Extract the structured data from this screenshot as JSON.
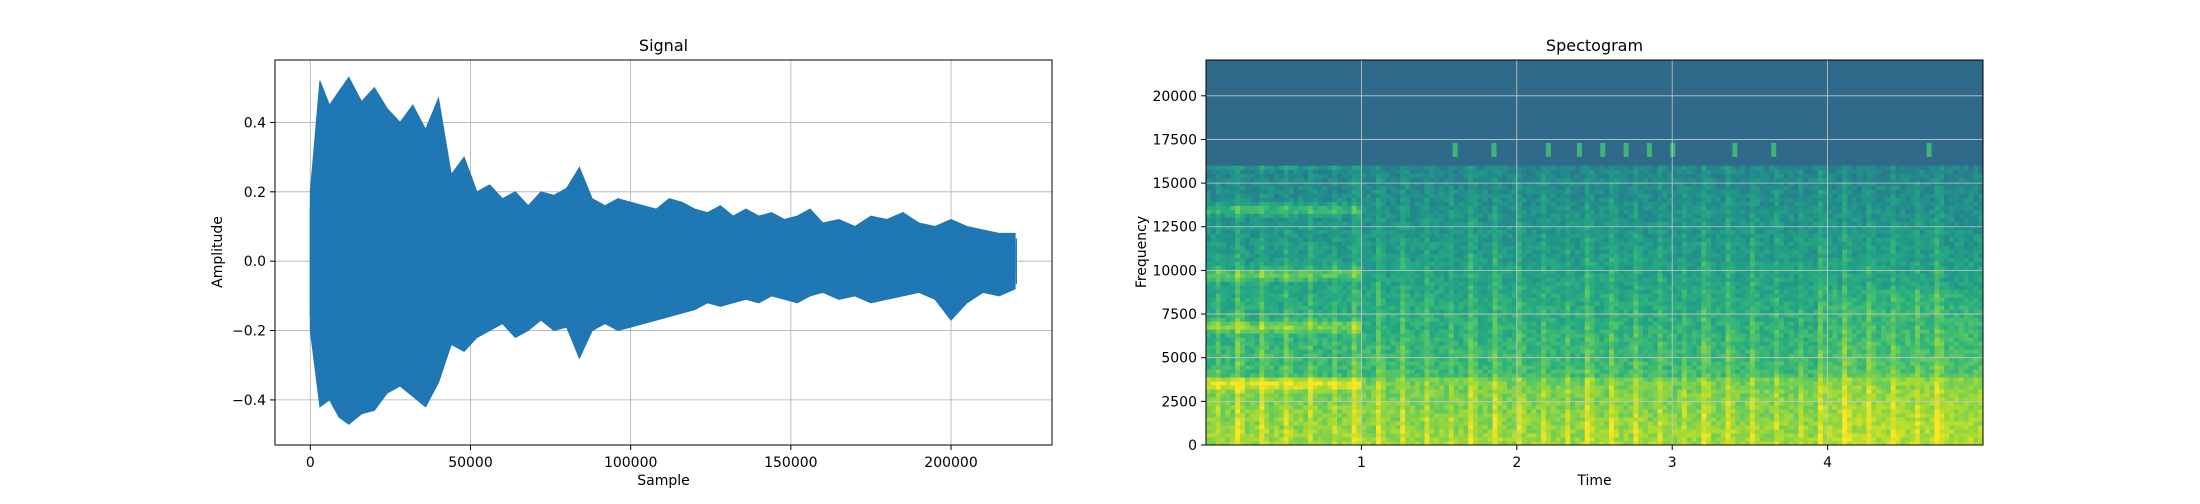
{
  "chart_data": [
    {
      "type": "line",
      "title": "Signal",
      "xlabel": "Sample",
      "ylabel": "Amplitude",
      "xlim": [
        -11025,
        231525
      ],
      "ylim": [
        -0.53,
        0.58
      ],
      "grid": true,
      "xticks": [
        0,
        50000,
        100000,
        150000,
        200000
      ],
      "yticks": [
        -0.4,
        -0.2,
        0.0,
        0.2,
        0.4
      ],
      "xtick_labels": [
        "0",
        "50000",
        "100000",
        "150000",
        "200000"
      ],
      "ytick_labels": [
        "−0.4",
        "−0.2",
        "0.0",
        "0.2",
        "0.4"
      ],
      "line_color": "#1f77b4",
      "n_samples": 220500,
      "envelope": {
        "x": [
          0,
          3000,
          6000,
          9000,
          12000,
          16000,
          20000,
          24000,
          28000,
          32000,
          36000,
          40000,
          44000,
          48000,
          52000,
          56000,
          60000,
          64000,
          68000,
          72000,
          76000,
          80000,
          84000,
          88000,
          92000,
          96000,
          100000,
          104000,
          108000,
          112000,
          116000,
          120000,
          124000,
          128000,
          132000,
          136000,
          140000,
          144000,
          148000,
          152000,
          156000,
          160000,
          165000,
          170000,
          175000,
          180000,
          185000,
          190000,
          195000,
          200000,
          205000,
          210000,
          215000,
          220000
        ],
        "top": [
          0.2,
          0.52,
          0.45,
          0.49,
          0.53,
          0.46,
          0.5,
          0.44,
          0.4,
          0.45,
          0.38,
          0.47,
          0.25,
          0.3,
          0.2,
          0.22,
          0.18,
          0.2,
          0.16,
          0.2,
          0.19,
          0.21,
          0.27,
          0.18,
          0.16,
          0.18,
          0.17,
          0.16,
          0.15,
          0.18,
          0.17,
          0.15,
          0.14,
          0.16,
          0.13,
          0.15,
          0.13,
          0.14,
          0.12,
          0.13,
          0.15,
          0.11,
          0.12,
          0.1,
          0.13,
          0.12,
          0.14,
          0.11,
          0.1,
          0.12,
          0.1,
          0.09,
          0.08,
          0.08
        ],
        "bottom": [
          -0.2,
          -0.42,
          -0.4,
          -0.45,
          -0.47,
          -0.44,
          -0.43,
          -0.38,
          -0.36,
          -0.39,
          -0.42,
          -0.35,
          -0.24,
          -0.26,
          -0.22,
          -0.2,
          -0.18,
          -0.22,
          -0.2,
          -0.17,
          -0.2,
          -0.19,
          -0.28,
          -0.2,
          -0.18,
          -0.2,
          -0.19,
          -0.18,
          -0.17,
          -0.16,
          -0.15,
          -0.14,
          -0.12,
          -0.13,
          -0.12,
          -0.11,
          -0.12,
          -0.1,
          -0.11,
          -0.12,
          -0.1,
          -0.09,
          -0.11,
          -0.1,
          -0.12,
          -0.11,
          -0.1,
          -0.09,
          -0.11,
          -0.17,
          -0.12,
          -0.09,
          -0.1,
          -0.08
        ]
      }
    },
    {
      "type": "heatmap",
      "title": "Spectogram",
      "xlabel": "Time",
      "ylabel": "Frequency",
      "xlim": [
        0,
        5.0
      ],
      "ylim": [
        0,
        22050
      ],
      "grid": true,
      "xticks": [
        1,
        2,
        3,
        4
      ],
      "yticks": [
        0,
        2500,
        5000,
        7500,
        10000,
        12500,
        15000,
        17500,
        20000
      ],
      "xtick_labels": [
        "1",
        "2",
        "3",
        "4"
      ],
      "ytick_labels": [
        "0",
        "2500",
        "5000",
        "7500",
        "10000",
        "12500",
        "15000",
        "17500",
        "20000"
      ],
      "colormap": [
        "#440154",
        "#3b528b",
        "#2c728e",
        "#21918c",
        "#28ae80",
        "#5ec962",
        "#addc30",
        "#fde725"
      ],
      "background_top_color": "#2f6a8a",
      "cutoff_freq": 16000,
      "harmonic_bands": [
        3500,
        6800,
        9800,
        13500,
        16200
      ],
      "onsets": [
        0.05,
        0.2,
        0.35,
        0.5,
        0.65,
        0.8,
        0.95,
        1.1,
        1.25,
        1.4,
        1.55,
        1.7,
        1.85,
        2.0,
        2.15,
        2.3,
        2.45,
        2.6,
        2.75,
        2.9,
        3.05,
        3.2,
        3.35,
        3.5,
        3.65,
        3.8,
        3.95,
        4.1,
        4.25,
        4.4,
        4.55,
        4.7
      ]
    }
  ]
}
